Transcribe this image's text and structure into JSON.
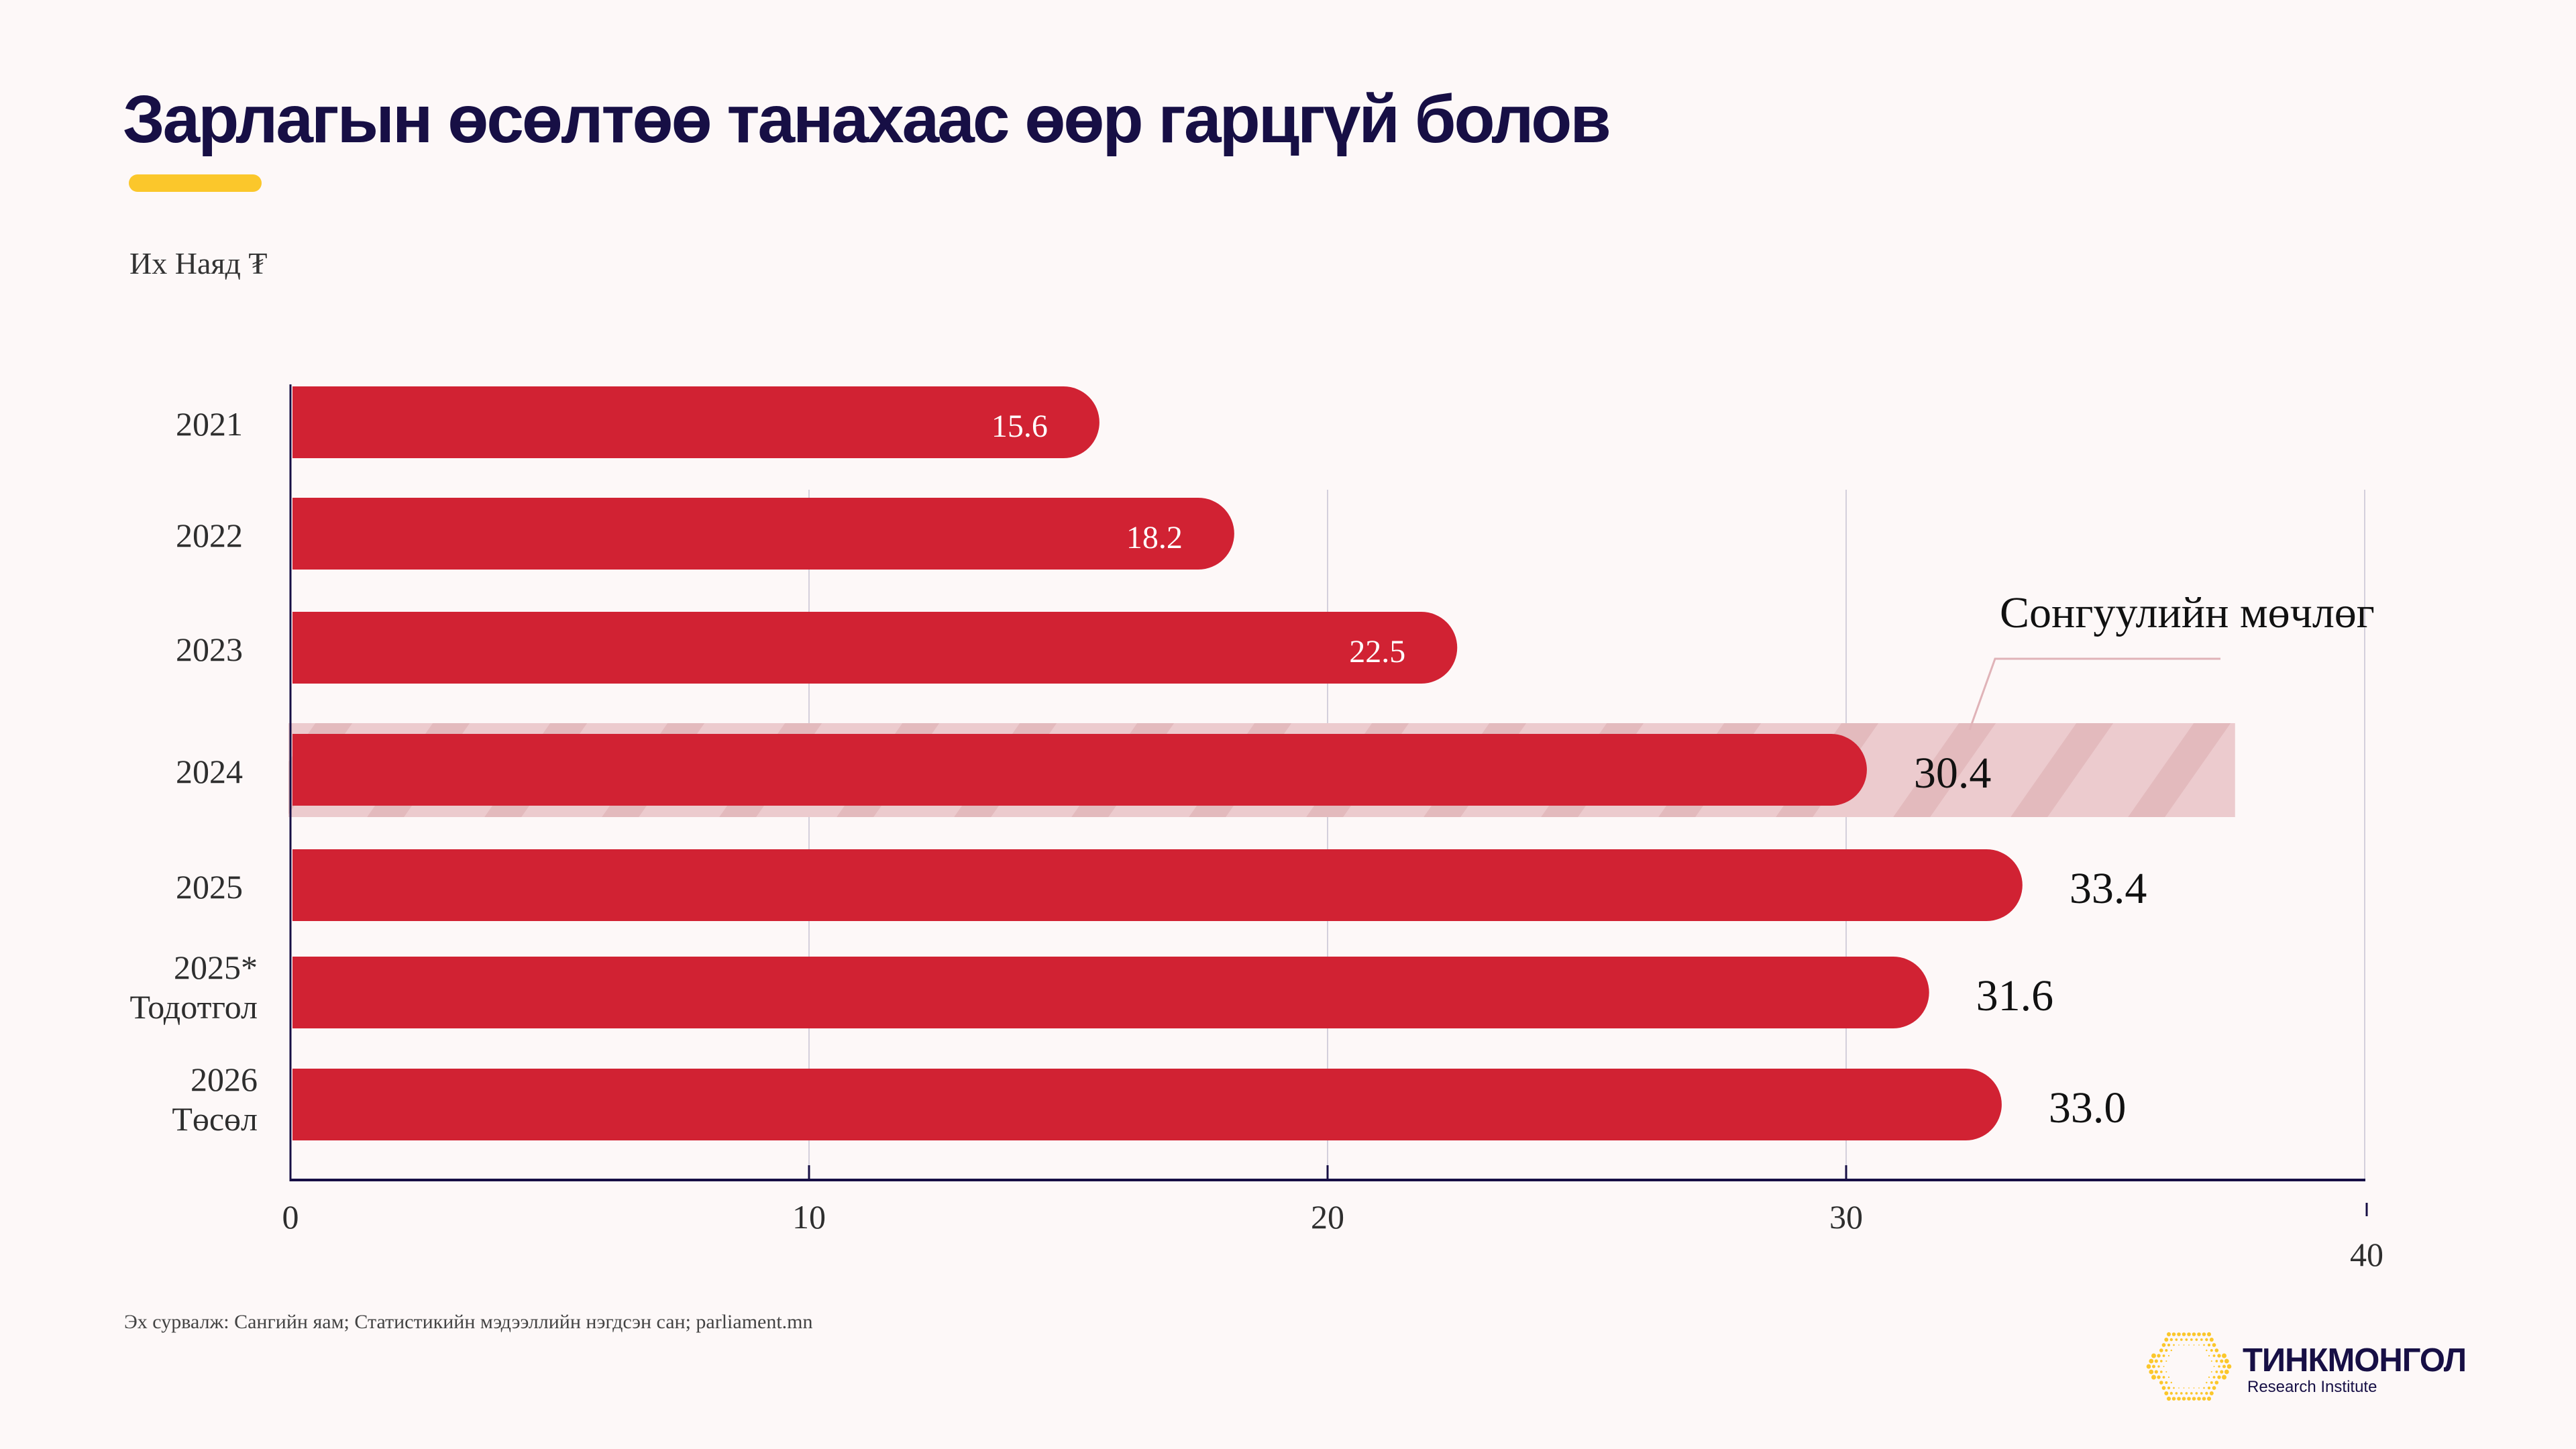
{
  "header": {
    "title": "Зарлагын өсөлтөө танахаас өөр гарцгүй болов",
    "unit_label": "Их Наяд ₮"
  },
  "colors": {
    "bar": "#d12233",
    "title": "#170f45",
    "accent": "#fbc72b",
    "band_bg": "#eccbce",
    "band_stripe": "#e3babd",
    "gridline": "#d4d0dc",
    "axis": "#170f45"
  },
  "chart_data": {
    "type": "bar",
    "orientation": "horizontal",
    "title": "Зарлагын өсөлтөө танахаас өөр гарцгүй болов",
    "xlabel": "",
    "ylabel": "Их Наяд ₮",
    "categories": [
      {
        "line1": "2021",
        "line2": ""
      },
      {
        "line1": "2022",
        "line2": ""
      },
      {
        "line1": "2023",
        "line2": ""
      },
      {
        "line1": "2024",
        "line2": ""
      },
      {
        "line1": "2025",
        "line2": ""
      },
      {
        "line1": "2025*",
        "line2": "Тодотгол"
      },
      {
        "line1": "2026",
        "line2": "Төсөл"
      }
    ],
    "values": [
      15.6,
      18.2,
      22.5,
      30.4,
      33.4,
      31.6,
      33.0
    ],
    "value_labels": [
      "15.6",
      "18.2",
      "22.5",
      "30.4",
      "33.4",
      "31.6",
      "33.0"
    ],
    "label_position": [
      "inside",
      "inside",
      "inside",
      "outside",
      "outside",
      "outside",
      "outside"
    ],
    "xlim": [
      0,
      40
    ],
    "xticks": [
      0,
      10,
      20,
      30,
      40
    ],
    "xtick_labels": [
      "0",
      "10",
      "20",
      "30",
      "40"
    ],
    "grid": true,
    "highlight": {
      "category": "2024",
      "extends_to": 37.5,
      "annotation": "Сонгуулийн мөчлөг"
    }
  },
  "footer": {
    "source": "Эх сурвалж: Сангийн яам; Статистикийн мэдээллийн нэгдсэн сан; parliament.mn",
    "logo_name": "ТИНКМОНГОЛ",
    "logo_subtitle": "Research Institute"
  }
}
